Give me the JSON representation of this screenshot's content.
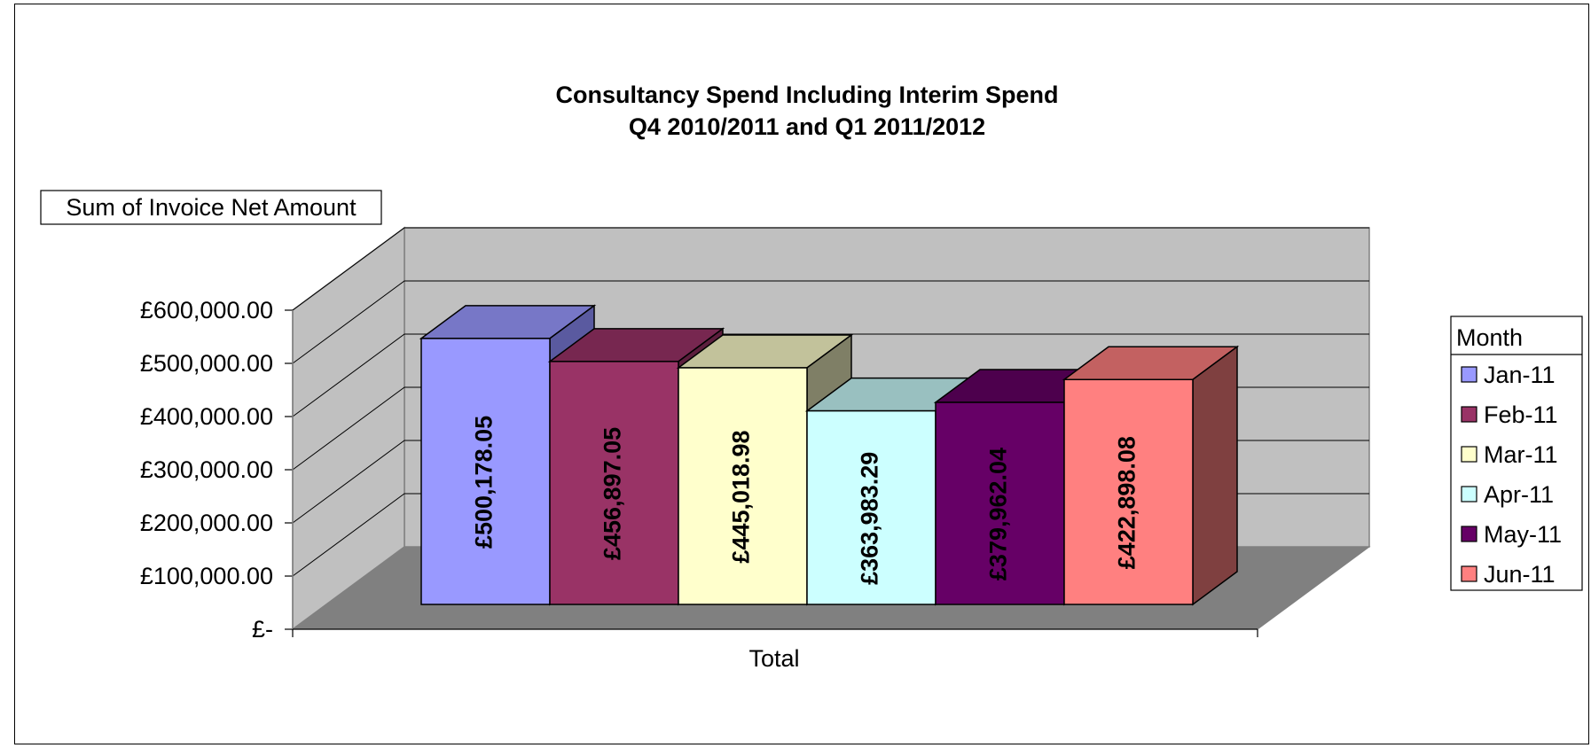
{
  "chart_data": {
    "type": "bar",
    "title_line1": "Consultancy Spend Including Interim Spend",
    "title_line2": "Q4 2010/2011 and Q1 2011/2012",
    "field_button": "Sum of Invoice Net Amount",
    "xlabel": "Total",
    "categories": [
      "Total"
    ],
    "ylim": [
      0,
      600000
    ],
    "y_ticks": [
      {
        "value": 0,
        "label": "£-"
      },
      {
        "value": 100000,
        "label": "£100,000.00"
      },
      {
        "value": 200000,
        "label": "£200,000.00"
      },
      {
        "value": 300000,
        "label": "£300,000.00"
      },
      {
        "value": 400000,
        "label": "£400,000.00"
      },
      {
        "value": 500000,
        "label": "£500,000.00"
      },
      {
        "value": 600000,
        "label": "£600,000.00"
      }
    ],
    "legend_title": "Month",
    "legend_placement": "right",
    "series": [
      {
        "name": "Jan-11",
        "value": 500178.05,
        "label": "£500,178.05",
        "color": "#9999FF",
        "top": "#7777C7",
        "side": "#5A5AA0"
      },
      {
        "name": "Feb-11",
        "value": 456897.05,
        "label": "£456,897.05",
        "color": "#993366",
        "top": "#772750",
        "side": "#5C1E3D"
      },
      {
        "name": "Mar-11",
        "value": 445018.98,
        "label": "£445,018.98",
        "color": "#FFFFCC",
        "top": "#C2C29B",
        "side": "#7F7F66"
      },
      {
        "name": "Apr-11",
        "value": 363983.29,
        "label": "£363,983.29",
        "color": "#CCFFFF",
        "top": "#99C0C0",
        "side": "#7A9999"
      },
      {
        "name": "May-11",
        "value": 379962.04,
        "label": "£379,962.04",
        "color": "#660066",
        "top": "#4D004D",
        "side": "#3A003A"
      },
      {
        "name": "Jun-11",
        "value": 422898.08,
        "label": "£422,898.08",
        "color": "#FF8080",
        "top": "#C36161",
        "side": "#7F4040"
      }
    ],
    "colors": {
      "back_wall": "#C0C0C0",
      "floor": "#808080"
    }
  }
}
